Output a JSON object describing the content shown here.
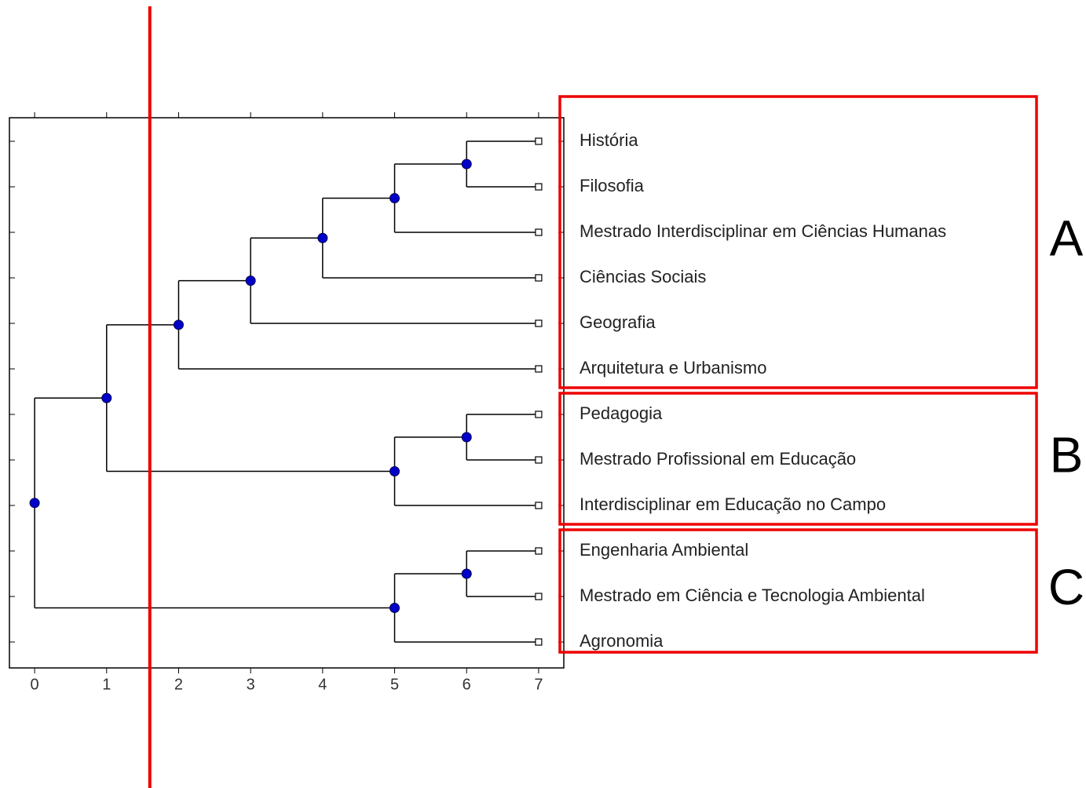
{
  "chart_data": {
    "type": "dendrogram",
    "xlim": [
      -0.35,
      7.35
    ],
    "xticks": [
      0,
      1,
      2,
      3,
      4,
      5,
      6,
      7
    ],
    "cut": 1.6,
    "tree": {
      "level": 0,
      "children": [
        {
          "level": 1,
          "children": [
            {
              "level": 2,
              "group": "A",
              "children": [
                {
                  "level": 3,
                  "children": [
                    {
                      "level": 4,
                      "children": [
                        {
                          "level": 5,
                          "children": [
                            {
                              "level": 6,
                              "children": [
                                {
                                  "label": "História",
                                  "level": 7
                                },
                                {
                                  "label": "Filosofia",
                                  "level": 7
                                }
                              ]
                            },
                            {
                              "label": "Mestrado Interdisciplinar em Ciências Humanas",
                              "level": 7
                            }
                          ]
                        },
                        {
                          "label": "Ciências Sociais",
                          "level": 7
                        }
                      ]
                    },
                    {
                      "label": "Geografia",
                      "level": 7
                    }
                  ]
                },
                {
                  "label": "Arquitetura e Urbanismo",
                  "level": 7
                }
              ]
            },
            {
              "level": 5,
              "group": "B",
              "children": [
                {
                  "level": 6,
                  "children": [
                    {
                      "label": "Pedagogia",
                      "level": 7
                    },
                    {
                      "label": "Mestrado Profissional em Educação",
                      "level": 7
                    }
                  ]
                },
                {
                  "label": "Interdisciplinar em Educação no Campo",
                  "level": 7
                }
              ]
            }
          ]
        },
        {
          "level": 5,
          "group": "C",
          "children": [
            {
              "level": 6,
              "children": [
                {
                  "label": "Engenharia Ambiental",
                  "level": 7
                },
                {
                  "label": "Mestrado em Ciência e Tecnologia Ambiental",
                  "level": 7
                }
              ]
            },
            {
              "label": "Agronomia",
              "level": 7
            }
          ]
        }
      ]
    }
  }
}
